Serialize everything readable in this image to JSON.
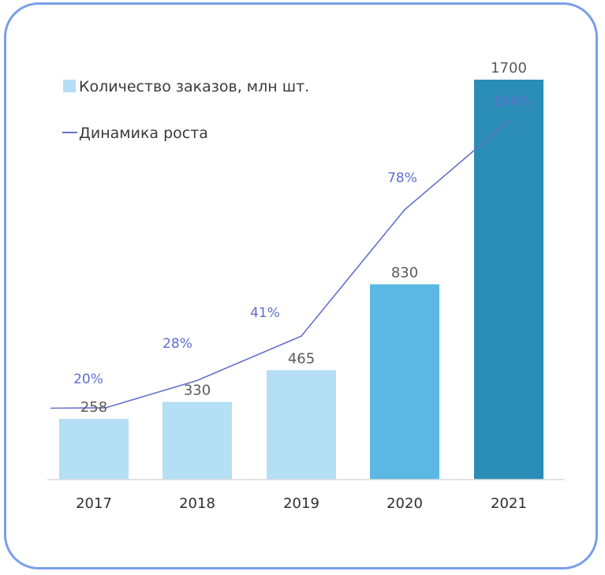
{
  "chart_data": {
    "type": "bar",
    "categories": [
      "2017",
      "2018",
      "2019",
      "2020",
      "2021"
    ],
    "series": [
      {
        "name": "Количество заказов, млн  шт.",
        "type": "bar",
        "values": [
          258,
          330,
          465,
          830,
          1700
        ],
        "labels": [
          "258",
          "330",
          "465",
          "830",
          "1700"
        ],
        "colors": [
          "#b4dff4",
          "#b4dff4",
          "#b4dff4",
          "#5ab8e2",
          "#2a8db6"
        ]
      },
      {
        "name": "Динамика роста",
        "type": "line",
        "values": [
          20,
          28,
          41,
          78,
          104
        ],
        "labels": [
          "20%",
          "28%",
          "41%",
          "78%",
          "104%"
        ],
        "color": "#5d6fd0"
      }
    ],
    "legend_position": "top-left",
    "grid": false
  }
}
